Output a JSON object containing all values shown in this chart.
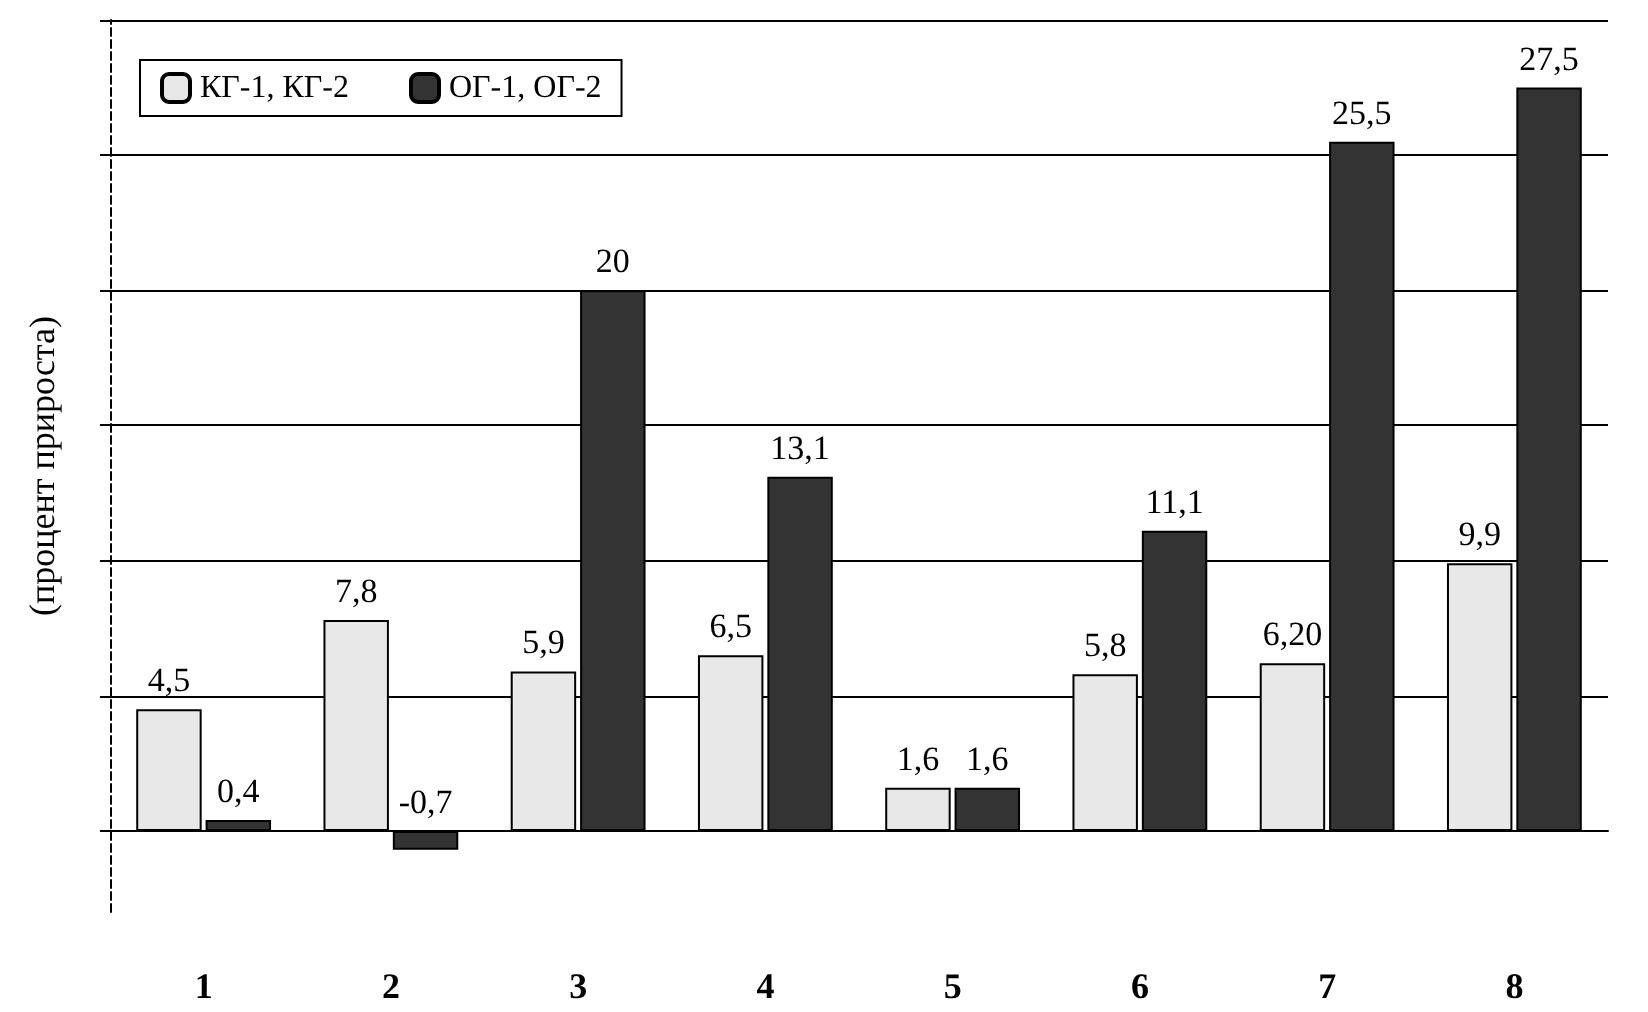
{
  "chart_data": {
    "type": "bar",
    "ylabel": "(процент прироста)",
    "categories": [
      "1",
      "2",
      "3",
      "4",
      "5",
      "6",
      "7",
      "8"
    ],
    "series": [
      {
        "name": "КГ-1, КГ-2",
        "color": "#e8e8e8",
        "values": [
          4.5,
          7.8,
          5.9,
          6.5,
          1.6,
          5.8,
          6.2,
          9.9
        ],
        "value_labels": [
          "4,5",
          "7,8",
          "5,9",
          "6,5",
          "1,6",
          "5,8",
          "6,20",
          "9,9"
        ]
      },
      {
        "name": "ОГ-1, ОГ-2",
        "color": "#333333",
        "values": [
          0.4,
          -0.7,
          20,
          13.1,
          1.6,
          11.1,
          25.5,
          27.5
        ],
        "value_labels": [
          "0,4",
          "-0,7",
          "20",
          "13,1",
          "1,6",
          "11,1",
          "25,5",
          "27,5"
        ]
      }
    ],
    "ylim": [
      -3,
      30
    ],
    "yticks": [
      {
        "value": 0,
        "label": null
      },
      {
        "value": 5,
        "label": null
      },
      {
        "value": 10,
        "label": null
      },
      {
        "value": 15,
        "label": null
      },
      {
        "value": 20,
        "label": null
      },
      {
        "value": 25,
        "label": null
      },
      {
        "value": 30,
        "label": null
      }
    ],
    "grid": "y",
    "legend": "top left",
    "tick_labels": "x"
  }
}
